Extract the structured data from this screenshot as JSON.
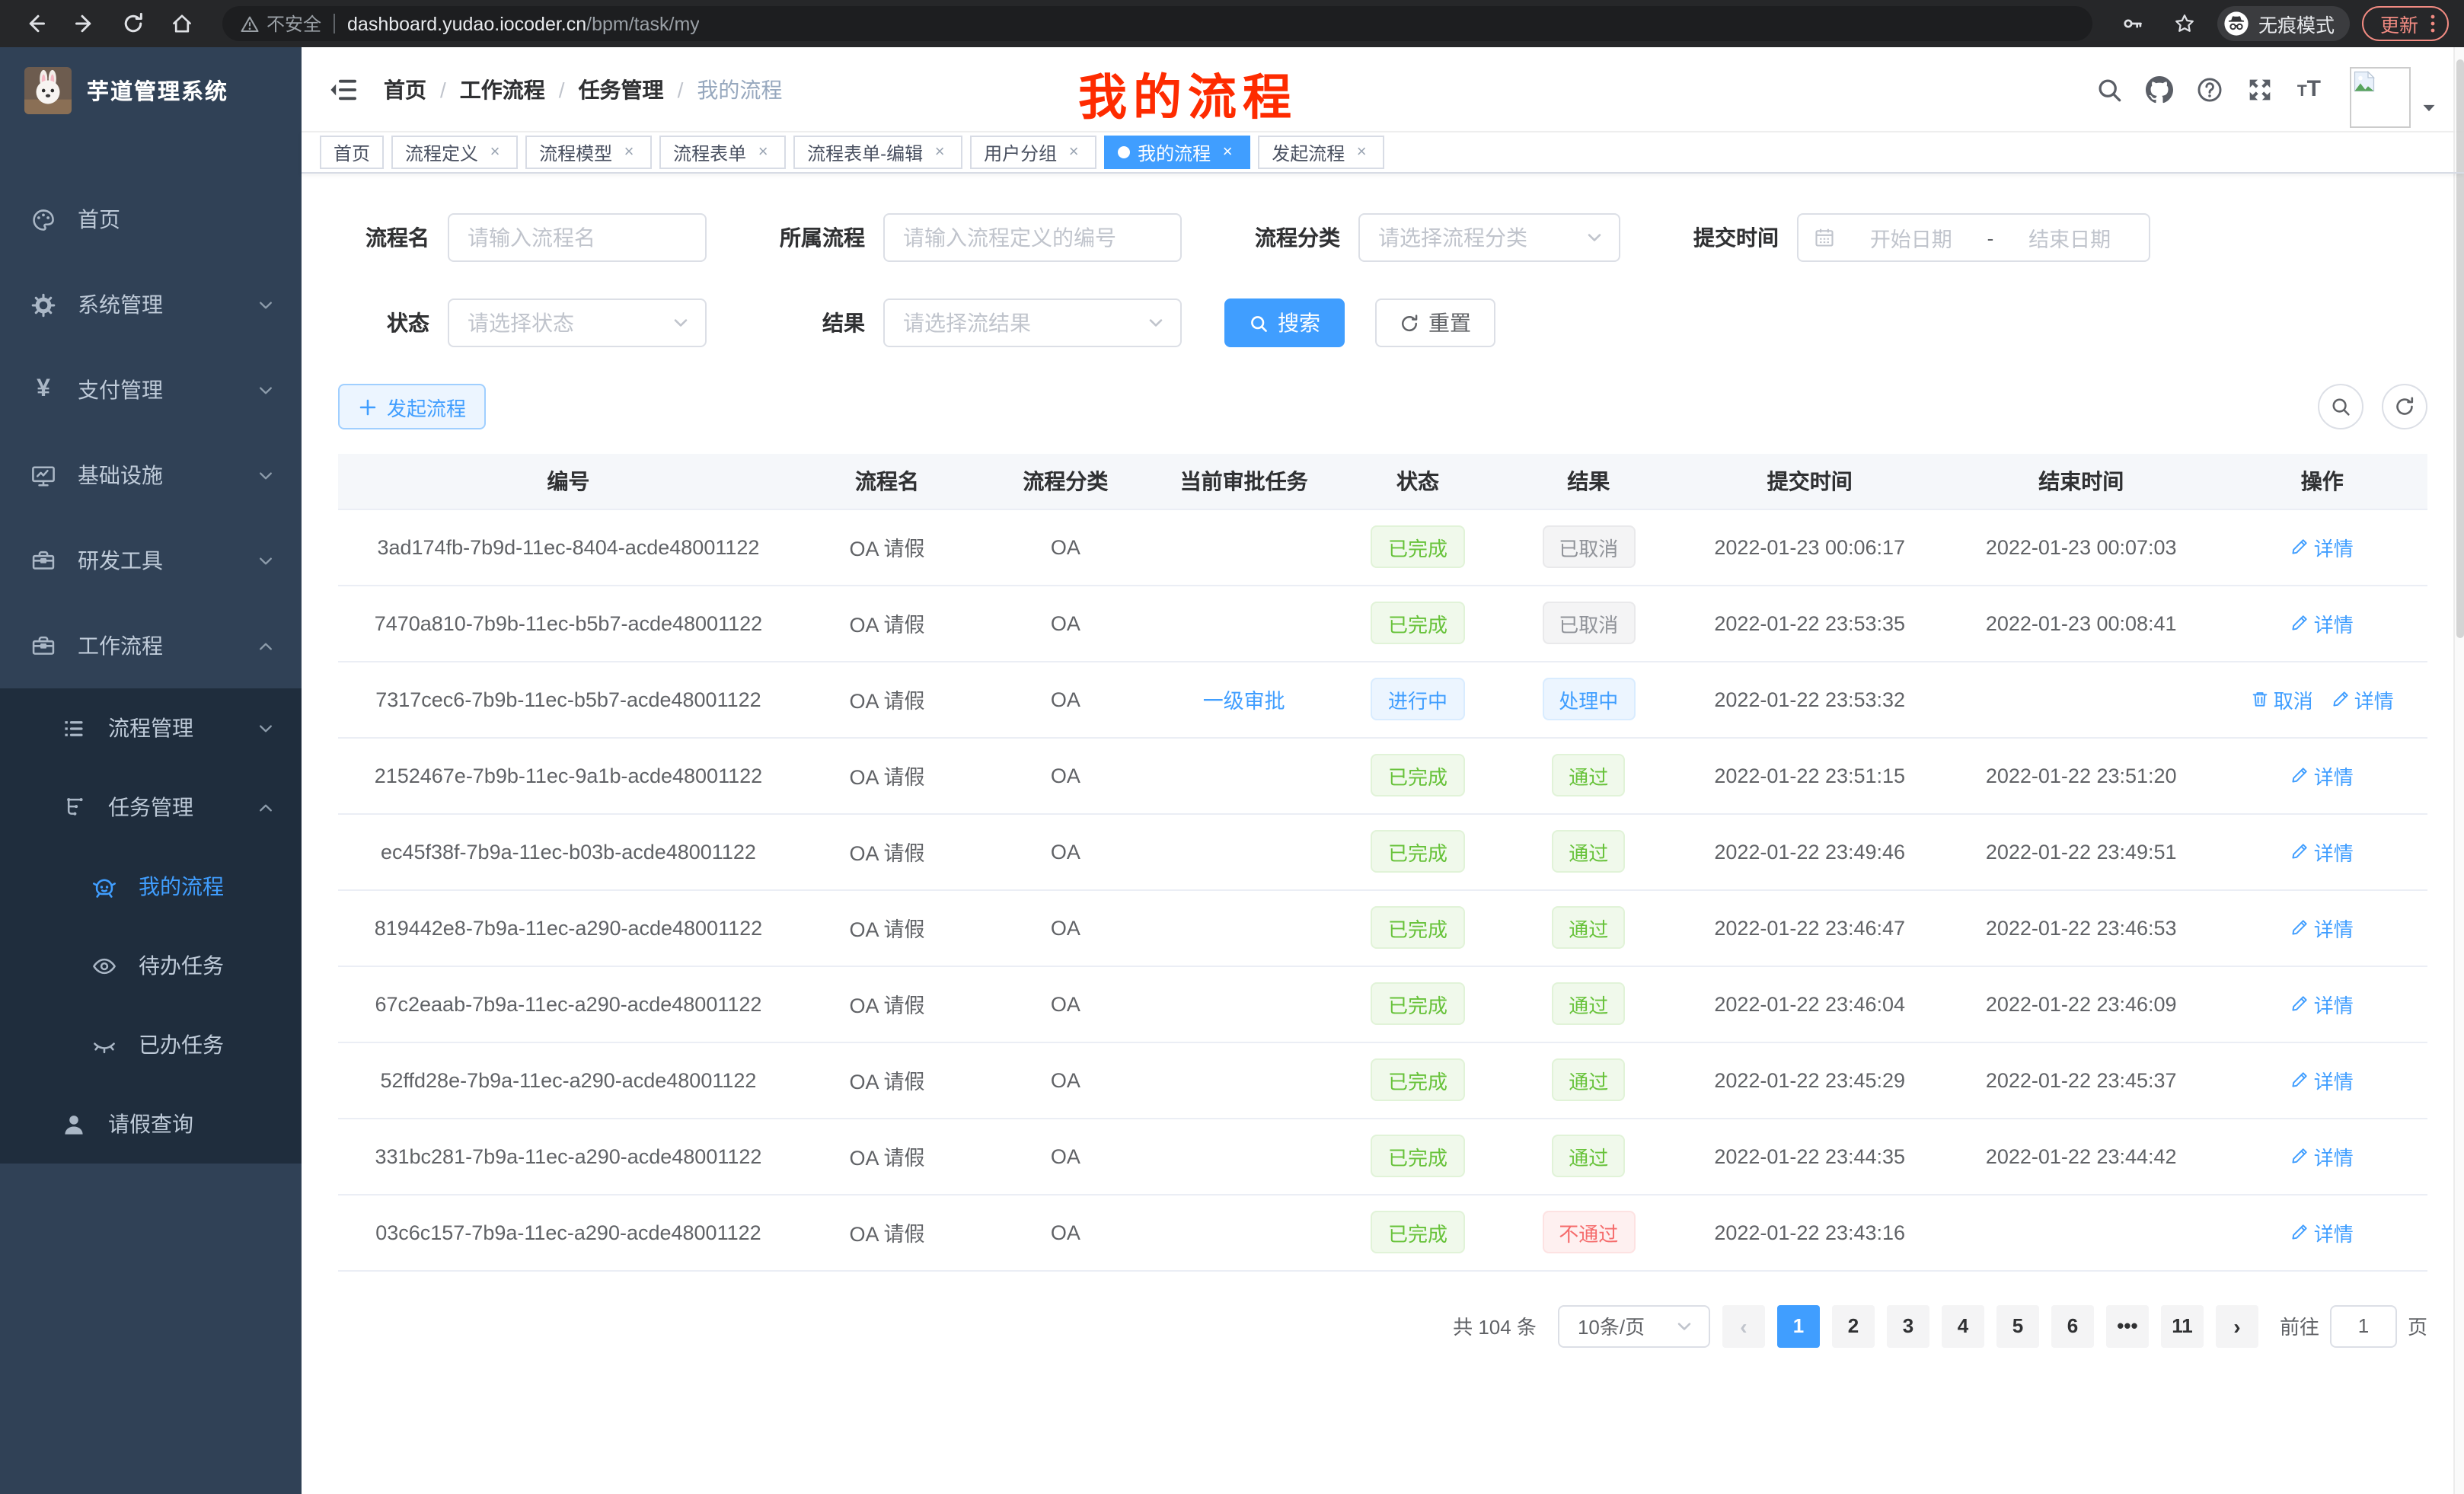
{
  "colors": {
    "accent": "#409eff",
    "annotation_red": "#fe2b00",
    "success": "#67c23a",
    "danger": "#f56c6c",
    "info": "#909399"
  },
  "browser": {
    "security_label": "不安全",
    "url_host": "dashboard.yudao.iocoder.cn",
    "url_path": "/bpm/task/my",
    "incognito_label": "无痕模式",
    "update_label": "更新"
  },
  "sidebar": {
    "app_title": "芋道管理系统",
    "menu": [
      {
        "key": "home",
        "label": "首页",
        "icon": "dashboard",
        "level": 1
      },
      {
        "key": "system",
        "label": "系统管理",
        "icon": "gear",
        "level": 1,
        "chevron": "down"
      },
      {
        "key": "payment",
        "label": "支付管理",
        "icon": "yen",
        "level": 1,
        "chevron": "down"
      },
      {
        "key": "infra",
        "label": "基础设施",
        "icon": "monitor",
        "level": 1,
        "chevron": "down"
      },
      {
        "key": "devtools",
        "label": "研发工具",
        "icon": "toolbox",
        "level": 1,
        "chevron": "down"
      },
      {
        "key": "workflow",
        "label": "工作流程",
        "icon": "toolbox",
        "level": 1,
        "chevron": "up"
      },
      {
        "key": "process-mgmt",
        "label": "流程管理",
        "icon": "list",
        "level": 2,
        "chevron": "down",
        "sub": true
      },
      {
        "key": "task-mgmt",
        "label": "任务管理",
        "icon": "tree",
        "level": 2,
        "chevron": "up",
        "sub": true
      },
      {
        "key": "my-process",
        "label": "我的流程",
        "icon": "robot",
        "level": 3,
        "active": true,
        "sub": true
      },
      {
        "key": "todo-tasks",
        "label": "待办任务",
        "icon": "eye",
        "level": 3,
        "sub": true
      },
      {
        "key": "done-tasks",
        "label": "已办任务",
        "icon": "eye-closed",
        "level": 3,
        "sub": true
      },
      {
        "key": "leave-query",
        "label": "请假查询",
        "icon": "user",
        "level": 2,
        "sub": true
      }
    ]
  },
  "header": {
    "breadcrumb": [
      "首页",
      "工作流程",
      "任务管理",
      "我的流程"
    ],
    "annotation": "我的流程"
  },
  "tabbar": {
    "tabs": [
      {
        "label": "首页"
      },
      {
        "label": "流程定义",
        "closable": true
      },
      {
        "label": "流程模型",
        "closable": true
      },
      {
        "label": "流程表单",
        "closable": true
      },
      {
        "label": "流程表单-编辑",
        "closable": true
      },
      {
        "label": "用户分组",
        "closable": true
      },
      {
        "label": "我的流程",
        "closable": true,
        "active": true
      },
      {
        "label": "发起流程",
        "closable": true
      }
    ]
  },
  "filters": {
    "process_name_label": "流程名",
    "process_name_placeholder": "请输入流程名",
    "parent_process_label": "所属流程",
    "parent_process_placeholder": "请输入流程定义的编号",
    "category_label": "流程分类",
    "category_placeholder": "请选择流程分类",
    "submit_time_label": "提交时间",
    "date_start_placeholder": "开始日期",
    "date_separator": "-",
    "date_end_placeholder": "结束日期",
    "status_label": "状态",
    "status_placeholder": "请选择状态",
    "result_label": "结果",
    "result_placeholder": "请选择流结果",
    "search_label": "搜索",
    "reset_label": "重置"
  },
  "toolbar": {
    "create_label": "发起流程"
  },
  "table": {
    "columns": [
      "编号",
      "流程名",
      "流程分类",
      "当前审批任务",
      "状态",
      "结果",
      "提交时间",
      "结束时间",
      "操作"
    ],
    "rows": [
      {
        "id": "3ad174fb-7b9d-11ec-8404-acde48001122",
        "name": "OA 请假",
        "category": "OA",
        "task": "",
        "status": {
          "text": "已完成",
          "type": "success"
        },
        "result": {
          "text": "已取消",
          "type": "info"
        },
        "submit": "2022-01-23 00:06:17",
        "end": "2022-01-23 00:07:03",
        "actions": [
          {
            "label": "详情",
            "icon": "edit"
          }
        ]
      },
      {
        "id": "7470a810-7b9b-11ec-b5b7-acde48001122",
        "name": "OA 请假",
        "category": "OA",
        "task": "",
        "status": {
          "text": "已完成",
          "type": "success"
        },
        "result": {
          "text": "已取消",
          "type": "info"
        },
        "submit": "2022-01-22 23:53:35",
        "end": "2022-01-23 00:08:41",
        "actions": [
          {
            "label": "详情",
            "icon": "edit"
          }
        ]
      },
      {
        "id": "7317cec6-7b9b-11ec-b5b7-acde48001122",
        "name": "OA 请假",
        "category": "OA",
        "task": "一级审批",
        "status": {
          "text": "进行中",
          "type": "primary"
        },
        "result": {
          "text": "处理中",
          "type": "primary"
        },
        "submit": "2022-01-22 23:53:32",
        "end": "",
        "actions": [
          {
            "label": "取消",
            "icon": "trash"
          },
          {
            "label": "详情",
            "icon": "edit"
          }
        ]
      },
      {
        "id": "2152467e-7b9b-11ec-9a1b-acde48001122",
        "name": "OA 请假",
        "category": "OA",
        "task": "",
        "status": {
          "text": "已完成",
          "type": "success"
        },
        "result": {
          "text": "通过",
          "type": "success"
        },
        "submit": "2022-01-22 23:51:15",
        "end": "2022-01-22 23:51:20",
        "actions": [
          {
            "label": "详情",
            "icon": "edit"
          }
        ]
      },
      {
        "id": "ec45f38f-7b9a-11ec-b03b-acde48001122",
        "name": "OA 请假",
        "category": "OA",
        "task": "",
        "status": {
          "text": "已完成",
          "type": "success"
        },
        "result": {
          "text": "通过",
          "type": "success"
        },
        "submit": "2022-01-22 23:49:46",
        "end": "2022-01-22 23:49:51",
        "actions": [
          {
            "label": "详情",
            "icon": "edit"
          }
        ]
      },
      {
        "id": "819442e8-7b9a-11ec-a290-acde48001122",
        "name": "OA 请假",
        "category": "OA",
        "task": "",
        "status": {
          "text": "已完成",
          "type": "success"
        },
        "result": {
          "text": "通过",
          "type": "success"
        },
        "submit": "2022-01-22 23:46:47",
        "end": "2022-01-22 23:46:53",
        "actions": [
          {
            "label": "详情",
            "icon": "edit"
          }
        ]
      },
      {
        "id": "67c2eaab-7b9a-11ec-a290-acde48001122",
        "name": "OA 请假",
        "category": "OA",
        "task": "",
        "status": {
          "text": "已完成",
          "type": "success"
        },
        "result": {
          "text": "通过",
          "type": "success"
        },
        "submit": "2022-01-22 23:46:04",
        "end": "2022-01-22 23:46:09",
        "actions": [
          {
            "label": "详情",
            "icon": "edit"
          }
        ]
      },
      {
        "id": "52ffd28e-7b9a-11ec-a290-acde48001122",
        "name": "OA 请假",
        "category": "OA",
        "task": "",
        "status": {
          "text": "已完成",
          "type": "success"
        },
        "result": {
          "text": "通过",
          "type": "success"
        },
        "submit": "2022-01-22 23:45:29",
        "end": "2022-01-22 23:45:37",
        "actions": [
          {
            "label": "详情",
            "icon": "edit"
          }
        ]
      },
      {
        "id": "331bc281-7b9a-11ec-a290-acde48001122",
        "name": "OA 请假",
        "category": "OA",
        "task": "",
        "status": {
          "text": "已完成",
          "type": "success"
        },
        "result": {
          "text": "通过",
          "type": "success"
        },
        "submit": "2022-01-22 23:44:35",
        "end": "2022-01-22 23:44:42",
        "actions": [
          {
            "label": "详情",
            "icon": "edit"
          }
        ]
      },
      {
        "id": "03c6c157-7b9a-11ec-a290-acde48001122",
        "name": "OA 请假",
        "category": "OA",
        "task": "",
        "status": {
          "text": "已完成",
          "type": "success"
        },
        "result": {
          "text": "不通过",
          "type": "danger"
        },
        "submit": "2022-01-22 23:43:16",
        "end": "",
        "actions": [
          {
            "label": "详情",
            "icon": "edit"
          }
        ]
      }
    ]
  },
  "pagination": {
    "total": "共 104 条",
    "page_size": "10条/页",
    "prev": "‹",
    "next": "›",
    "pages": [
      "1",
      "2",
      "3",
      "4",
      "5",
      "6",
      "•••",
      "11"
    ],
    "active": "1",
    "goto_label": "前往",
    "goto_value": "1",
    "unit": "页"
  }
}
